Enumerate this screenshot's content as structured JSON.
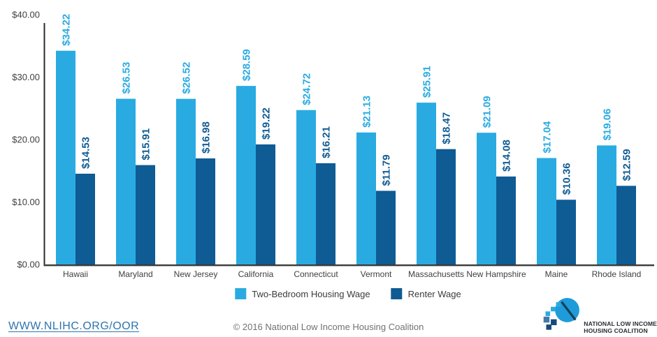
{
  "chart_data": {
    "type": "bar",
    "title": "",
    "categories": [
      "Hawaii",
      "Maryland",
      "New Jersey",
      "California",
      "Connecticut",
      "Vermont",
      "Massachusetts",
      "New Hampshire",
      "Maine",
      "Rhode Island"
    ],
    "series": [
      {
        "name": "Two-Bedroom Housing Wage",
        "color": "#29ABE2",
        "values": [
          34.22,
          26.53,
          26.52,
          28.59,
          24.72,
          21.13,
          25.91,
          21.09,
          17.04,
          19.06
        ]
      },
      {
        "name": "Renter Wage",
        "color": "#0F5B94",
        "values": [
          14.53,
          15.91,
          16.98,
          19.22,
          16.21,
          11.79,
          18.47,
          14.08,
          10.36,
          12.59
        ]
      }
    ],
    "value_label_prefix": "$",
    "ylim": [
      0,
      40
    ],
    "yticks": [
      {
        "value": 0,
        "label": "$0.00"
      },
      {
        "value": 10,
        "label": "$10.00"
      },
      {
        "value": 20,
        "label": "$20.00"
      },
      {
        "value": 30,
        "label": "$30.00"
      },
      {
        "value": 40,
        "label": "$40.00"
      }
    ],
    "grid": false,
    "legend_position": "bottom",
    "bar_value_labels_rotated": true
  },
  "footer": {
    "link_label": "WWW.NLIHC.ORG/OOR",
    "copyright": "© 2016 National Low Income Housing Coalition"
  },
  "logo": {
    "line1": "NATIONAL LOW INCOME",
    "line2": "HOUSING COALITION"
  },
  "colors": {
    "light_blue": "#29ABE2",
    "dark_blue": "#0F5B94",
    "axis": "#333333",
    "link": "#2E74AE",
    "logo_circle": "#1E9CD9",
    "logo_navy": "#17497B",
    "logo_medium_blue": "#4478AE",
    "logo_roof_line": "#1A4159"
  }
}
